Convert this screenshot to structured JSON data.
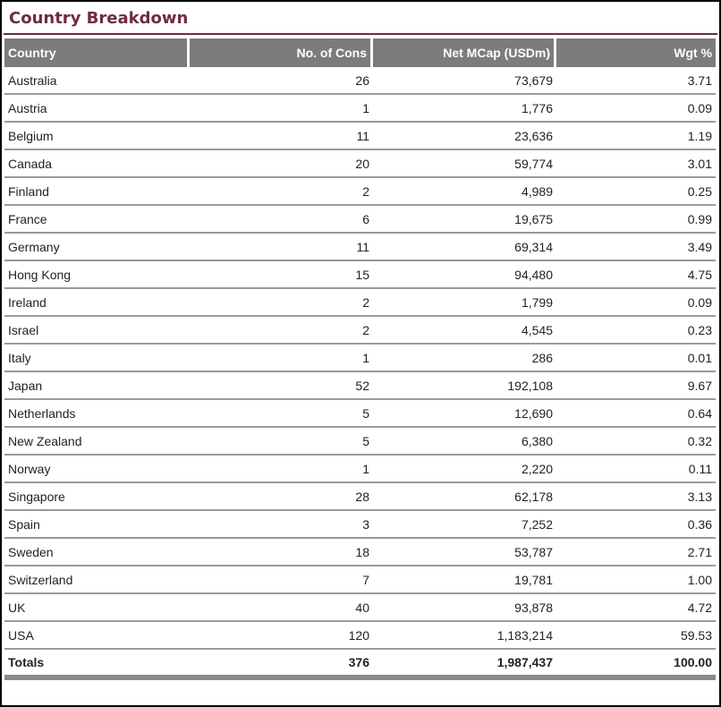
{
  "title": "Country Breakdown",
  "columns": [
    "Country",
    "No. of Cons",
    "Net MCap (USDm)",
    "Wgt %"
  ],
  "rows": [
    [
      "Australia",
      "26",
      "73,679",
      "3.71"
    ],
    [
      "Austria",
      "1",
      "1,776",
      "0.09"
    ],
    [
      "Belgium",
      "11",
      "23,636",
      "1.19"
    ],
    [
      "Canada",
      "20",
      "59,774",
      "3.01"
    ],
    [
      "Finland",
      "2",
      "4,989",
      "0.25"
    ],
    [
      "France",
      "6",
      "19,675",
      "0.99"
    ],
    [
      "Germany",
      "11",
      "69,314",
      "3.49"
    ],
    [
      "Hong Kong",
      "15",
      "94,480",
      "4.75"
    ],
    [
      "Ireland",
      "2",
      "1,799",
      "0.09"
    ],
    [
      "Israel",
      "2",
      "4,545",
      "0.23"
    ],
    [
      "Italy",
      "1",
      "286",
      "0.01"
    ],
    [
      "Japan",
      "52",
      "192,108",
      "9.67"
    ],
    [
      "Netherlands",
      "5",
      "12,690",
      "0.64"
    ],
    [
      "New Zealand",
      "5",
      "6,380",
      "0.32"
    ],
    [
      "Norway",
      "1",
      "2,220",
      "0.11"
    ],
    [
      "Singapore",
      "28",
      "62,178",
      "3.13"
    ],
    [
      "Spain",
      "3",
      "7,252",
      "0.36"
    ],
    [
      "Sweden",
      "18",
      "53,787",
      "2.71"
    ],
    [
      "Switzerland",
      "7",
      "19,781",
      "1.00"
    ],
    [
      "UK",
      "40",
      "93,878",
      "4.72"
    ],
    [
      "USA",
      "120",
      "1,183,214",
      "59.53"
    ]
  ],
  "totals": [
    "Totals",
    "376",
    "1,987,437",
    "100.00"
  ],
  "colors": {
    "title": "#6e2b48",
    "header_bg": "#7c7c7c"
  }
}
